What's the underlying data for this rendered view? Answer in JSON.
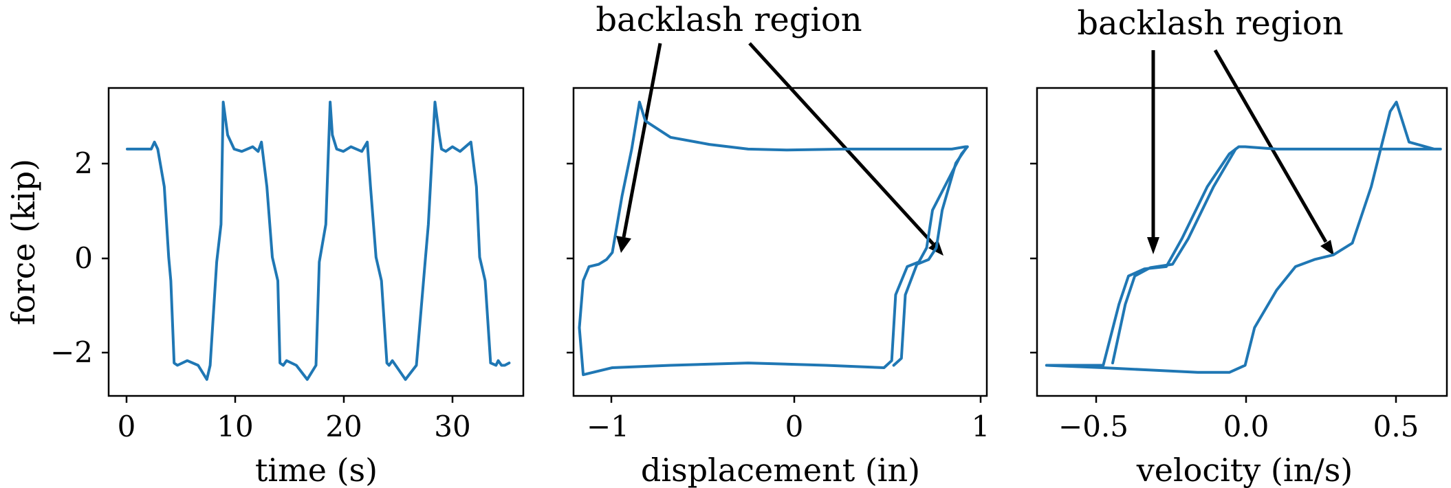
{
  "series_color": "#1f77b4",
  "y_axis": {
    "label": "force (kip)",
    "ticks": [
      {
        "value": 2,
        "label": "2"
      },
      {
        "value": 0,
        "label": "0"
      },
      {
        "value": -2,
        "label": "−2"
      }
    ]
  },
  "annotation_text": "backlash region",
  "chart_data": [
    {
      "type": "line",
      "xlabel": "time (s)",
      "ylabel": "force (kip)",
      "xlim": [
        -1.7,
        36.3
      ],
      "ylim": [
        -2.95,
        3.6
      ],
      "xticks": [
        {
          "value": 0,
          "label": "0"
        },
        {
          "value": 10,
          "label": "10"
        },
        {
          "value": 20,
          "label": "20"
        },
        {
          "value": 30,
          "label": "30"
        }
      ],
      "grid": false,
      "series": [
        {
          "x": [
            0,
            2.2,
            2.5,
            2.8,
            3.4,
            3.8,
            4.0,
            4.3,
            4.6,
            5.5,
            6.5,
            7.3,
            7.6,
            8.2,
            8.6,
            8.8,
            9.2,
            9.8,
            10.5,
            11.5,
            12.0,
            12.3,
            12.8,
            13.3,
            13.8,
            14.0,
            14.3,
            14.6,
            15.5,
            16.5,
            17.3,
            17.6,
            18.2,
            18.6,
            18.8,
            19.2,
            19.8,
            20.5,
            21.5,
            22.0,
            22.3,
            22.8,
            23.3,
            23.8,
            24.0,
            24.3,
            24.6,
            25.5,
            26.5,
            27.3,
            27.6,
            28.2,
            28.6,
            28.8,
            29.2,
            29.8,
            30.5,
            31.5,
            32.0,
            32.3,
            32.8,
            33.3,
            33.8,
            34.0,
            34.3,
            34.6,
            35.0
          ],
          "y": [
            2.3,
            2.3,
            2.45,
            2.3,
            1.5,
            0.0,
            -0.5,
            -2.25,
            -2.3,
            -2.2,
            -2.3,
            -2.6,
            -2.3,
            -0.1,
            0.7,
            3.3,
            2.6,
            2.3,
            2.25,
            2.35,
            2.25,
            2.45,
            1.5,
            0.0,
            -0.5,
            -2.25,
            -2.3,
            -2.2,
            -2.3,
            -2.6,
            -2.3,
            -0.1,
            0.7,
            3.3,
            2.6,
            2.3,
            2.25,
            2.35,
            2.25,
            2.45,
            1.5,
            0.0,
            -0.5,
            -2.25,
            -2.3,
            -2.2,
            -2.3,
            -2.6,
            -2.3,
            -0.1,
            0.7,
            3.3,
            2.6,
            2.3,
            2.25,
            2.35,
            2.25,
            2.45,
            1.5,
            0.0,
            -0.5,
            -2.25,
            -2.3,
            -2.2,
            -2.3,
            -2.3,
            -2.25
          ]
        }
      ]
    },
    {
      "type": "line",
      "xlabel": "displacement (in)",
      "ylabel": "",
      "xlim": [
        -1.1,
        1.03
      ],
      "ylim": [
        -2.95,
        3.6
      ],
      "xticks": [
        {
          "value": -1,
          "label": "−1"
        },
        {
          "value": 0,
          "label": "0"
        },
        {
          "value": 1,
          "label": "1"
        }
      ],
      "grid": false,
      "series": [
        {
          "x": [
            0.93,
            0.9,
            0.75,
            0.72,
            0.68,
            0.62,
            0.56,
            0.54,
            0.5,
            0.2,
            -0.2,
            -0.6,
            -0.9,
            -1.05,
            -1.07,
            -1.05,
            -1.02,
            -0.97,
            -0.93,
            -0.9,
            -0.85,
            -0.8,
            -0.76,
            -0.73,
            -0.6,
            -0.4,
            -0.2,
            0.0,
            0.3,
            0.6,
            0.85,
            0.92,
            0.93
          ],
          "y": [
            2.35,
            2.2,
            1.0,
            0.2,
            -0.1,
            -0.2,
            -0.8,
            -2.2,
            -2.35,
            -2.3,
            -2.25,
            -2.3,
            -2.35,
            -2.5,
            -1.5,
            -0.5,
            -0.2,
            -0.15,
            -0.05,
            0.1,
            1.3,
            2.3,
            3.3,
            2.9,
            2.55,
            2.4,
            2.3,
            2.28,
            2.3,
            2.3,
            2.3,
            2.35,
            2.35
          ]
        },
        {
          "x": [
            0.92,
            0.87,
            0.8,
            0.77,
            0.73,
            0.67,
            0.61,
            0.59,
            0.55
          ],
          "y": [
            2.3,
            2.0,
            1.0,
            0.2,
            -0.05,
            -0.15,
            -0.8,
            -2.15,
            -2.3
          ]
        }
      ]
    },
    {
      "type": "line",
      "xlabel": "velocity (in/s)",
      "ylabel": "",
      "xlim": [
        -0.66,
        0.64
      ],
      "ylim": [
        -2.95,
        3.6
      ],
      "xticks": [
        {
          "value": -0.5,
          "label": "−0.5"
        },
        {
          "value": 0.0,
          "label": "0.0"
        },
        {
          "value": 0.5,
          "label": "0.5"
        }
      ],
      "grid": false,
      "series": [
        {
          "x": [
            -0.63,
            -0.45,
            -0.4,
            -0.37,
            -0.32,
            -0.25,
            -0.2,
            -0.12,
            -0.05,
            -0.02,
            0.0,
            0.1,
            0.2,
            0.3,
            0.4,
            0.5,
            0.55,
            0.62,
            0.6,
            0.52,
            0.48,
            0.46,
            0.43,
            0.4,
            0.34,
            0.28,
            0.22,
            0.16,
            0.1,
            0.03,
            0.0,
            -0.05,
            -0.15,
            -0.3,
            -0.45,
            -0.63
          ],
          "y": [
            -2.3,
            -2.3,
            -1.0,
            -0.4,
            -0.25,
            -0.2,
            0.4,
            1.5,
            2.2,
            2.35,
            2.35,
            2.3,
            2.3,
            2.3,
            2.3,
            2.3,
            2.3,
            2.3,
            2.3,
            2.45,
            3.3,
            3.1,
            2.3,
            1.5,
            0.3,
            0.05,
            -0.05,
            -0.2,
            -0.7,
            -1.5,
            -2.3,
            -2.45,
            -2.45,
            -2.4,
            -2.35,
            -2.3
          ]
        },
        {
          "x": [
            -0.42,
            -0.38,
            -0.35,
            -0.3,
            -0.23,
            -0.18,
            -0.1,
            -0.03
          ],
          "y": [
            -2.25,
            -1.0,
            -0.4,
            -0.22,
            -0.15,
            0.4,
            1.5,
            2.3
          ]
        }
      ]
    }
  ]
}
